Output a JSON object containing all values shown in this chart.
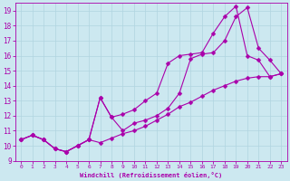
{
  "bg_color": "#cce8f0",
  "line_color": "#aa00aa",
  "marker": "D",
  "markersize": 2.5,
  "linewidth": 0.8,
  "xlabel": "Windchill (Refroidissement éolien,°C)",
  "xlim": [
    -0.5,
    23.5
  ],
  "ylim": [
    9,
    19.5
  ],
  "xticks": [
    0,
    1,
    2,
    3,
    4,
    5,
    6,
    7,
    8,
    9,
    10,
    11,
    12,
    13,
    14,
    15,
    16,
    17,
    18,
    19,
    20,
    21,
    22,
    23
  ],
  "yticks": [
    9,
    10,
    11,
    12,
    13,
    14,
    15,
    16,
    17,
    18,
    19
  ],
  "grid_color": "#b0d4e0",
  "line1_x": [
    0,
    1,
    2,
    3,
    4,
    5,
    6,
    7,
    8,
    9,
    10,
    11,
    12,
    13,
    14,
    15,
    16,
    17,
    18,
    19,
    20,
    21,
    22,
    23
  ],
  "line1_y": [
    10.4,
    10.7,
    10.4,
    9.8,
    9.6,
    10.0,
    10.4,
    13.2,
    11.9,
    12.1,
    12.4,
    13.0,
    13.5,
    15.5,
    16.0,
    16.1,
    16.2,
    17.5,
    18.6,
    19.3,
    16.0,
    15.7,
    14.6,
    14.8
  ],
  "line2_x": [
    0,
    1,
    2,
    3,
    4,
    5,
    6,
    7,
    8,
    9,
    10,
    11,
    12,
    13,
    14,
    15,
    16,
    17,
    18,
    19,
    20,
    21,
    22,
    23
  ],
  "line2_y": [
    10.4,
    10.7,
    10.4,
    9.8,
    9.6,
    10.0,
    10.4,
    13.2,
    11.9,
    11.0,
    11.5,
    11.7,
    12.0,
    12.5,
    13.5,
    15.8,
    16.1,
    16.2,
    17.0,
    18.6,
    19.2,
    16.5,
    15.7,
    14.8
  ],
  "line3_x": [
    0,
    1,
    2,
    3,
    4,
    5,
    6,
    7,
    8,
    9,
    10,
    11,
    12,
    13,
    14,
    15,
    16,
    17,
    18,
    19,
    20,
    21,
    22,
    23
  ],
  "line3_y": [
    10.4,
    10.7,
    10.4,
    9.8,
    9.6,
    10.0,
    10.4,
    10.2,
    10.5,
    10.8,
    11.0,
    11.3,
    11.7,
    12.1,
    12.6,
    12.9,
    13.3,
    13.7,
    14.0,
    14.3,
    14.5,
    14.6,
    14.6,
    14.8
  ]
}
